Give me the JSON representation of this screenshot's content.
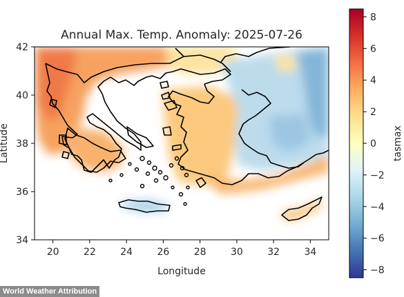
{
  "map": {
    "title": "Annual Max. Temp. Anomaly: 2025-07-26",
    "xlabel": "Longitude",
    "ylabel": "Latitude",
    "colorbar_label": "tasmax",
    "lon_range": [
      19,
      35
    ],
    "lat_range": [
      34,
      42
    ],
    "x_ticks": [
      "20",
      "22",
      "24",
      "26",
      "28",
      "30",
      "32",
      "34"
    ],
    "y_ticks": [
      "34",
      "36",
      "38",
      "40",
      "42"
    ],
    "colorbar_ticks": [
      "8",
      "6",
      "4",
      "2",
      "0",
      "−2",
      "−4",
      "−6",
      "−8"
    ],
    "colorbar_range": [
      -8.5,
      8.5
    ],
    "colormap": [
      "#a50026",
      "#d73027",
      "#f46d43",
      "#fdae61",
      "#fee090",
      "#ffffbf",
      "#e0f3f8",
      "#abd9e9",
      "#74add1",
      "#4575b4",
      "#313695"
    ],
    "land_anomaly_pattern": "warm (+2 to +5) over western Greece/Albania and the Turkish Aegean & Mediterranean coasts; near neutral over Thrace; cool (-2 to -5) over interior and eastern Anatolia; sea masked white"
  },
  "attribution": "World Weather Attribution"
}
